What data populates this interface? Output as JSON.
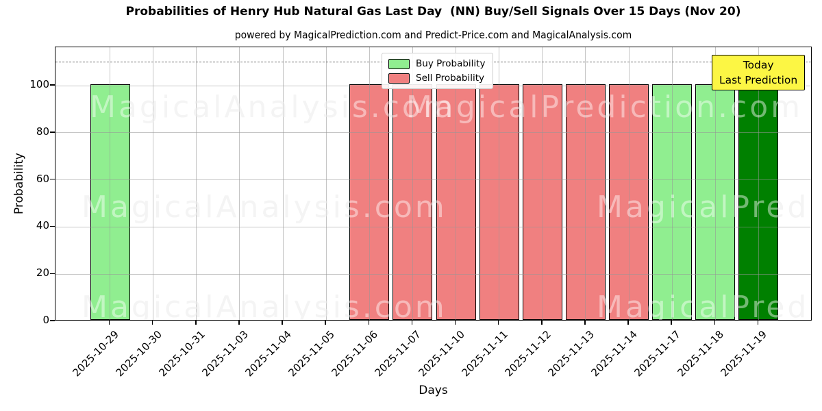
{
  "title": "Probabilities of Henry Hub Natural Gas Last Day  (NN) Buy/Sell Signals Over 15 Days (Nov 20)",
  "subtitle": "powered by MagicalPrediction.com and Predict-Price.com and MagicalAnalysis.com",
  "axes": {
    "xlabel": "Days",
    "ylabel": "Probability"
  },
  "legend": {
    "items": [
      {
        "label": "Buy Probability",
        "color": "#90ee90"
      },
      {
        "label": "Sell Probability",
        "color": "#f08080"
      }
    ]
  },
  "annotation": {
    "line1": "Today",
    "line2": "Last Prediction",
    "bg": "#fcf644",
    "border": "#000000"
  },
  "watermarks": {
    "left": "MagicalAnalysis.com",
    "right": "MagicalPrediction.com"
  },
  "chart_data": {
    "type": "bar",
    "title": "Probabilities of Henry Hub Natural Gas Last Day  (NN) Buy/Sell Signals Over 15 Days (Nov 20)",
    "subtitle": "powered by MagicalPrediction.com and Predict-Price.com and MagicalAnalysis.com",
    "xlabel": "Days",
    "ylabel": "Probability",
    "categories": [
      "2025-10-29",
      "2025-10-30",
      "2025-10-31",
      "2025-11-03",
      "2025-11-04",
      "2025-11-05",
      "2025-11-06",
      "2025-11-07",
      "2025-11-10",
      "2025-11-11",
      "2025-11-12",
      "2025-11-13",
      "2025-11-14",
      "2025-11-17",
      "2025-11-18",
      "2025-11-19"
    ],
    "series": [
      {
        "name": "Buy Probability",
        "values": [
          100,
          0,
          0,
          0,
          0,
          0,
          0,
          0,
          0,
          0,
          0,
          0,
          0,
          100,
          100,
          100
        ]
      },
      {
        "name": "Sell Probability",
        "values": [
          0,
          0,
          0,
          0,
          0,
          0,
          100,
          100,
          100,
          100,
          100,
          100,
          100,
          0,
          0,
          0
        ]
      }
    ],
    "bar_kinds": [
      "buy",
      "none",
      "none",
      "none",
      "none",
      "none",
      "sell",
      "sell",
      "sell",
      "sell",
      "sell",
      "sell",
      "sell",
      "buy",
      "buy",
      "today_buy"
    ],
    "bar_values": [
      100,
      0,
      0,
      0,
      0,
      0,
      100,
      100,
      100,
      100,
      100,
      100,
      100,
      100,
      100,
      100
    ],
    "colors": {
      "buy": "#90ee90",
      "sell": "#f08080",
      "today_buy": "#008000"
    },
    "yticks": [
      0,
      20,
      40,
      60,
      80,
      100
    ],
    "ylim": [
      0,
      116.3
    ],
    "dashed_line_y": 110,
    "grid": true,
    "legend_position": "top-center",
    "annotation_text": "Today Last Prediction"
  }
}
